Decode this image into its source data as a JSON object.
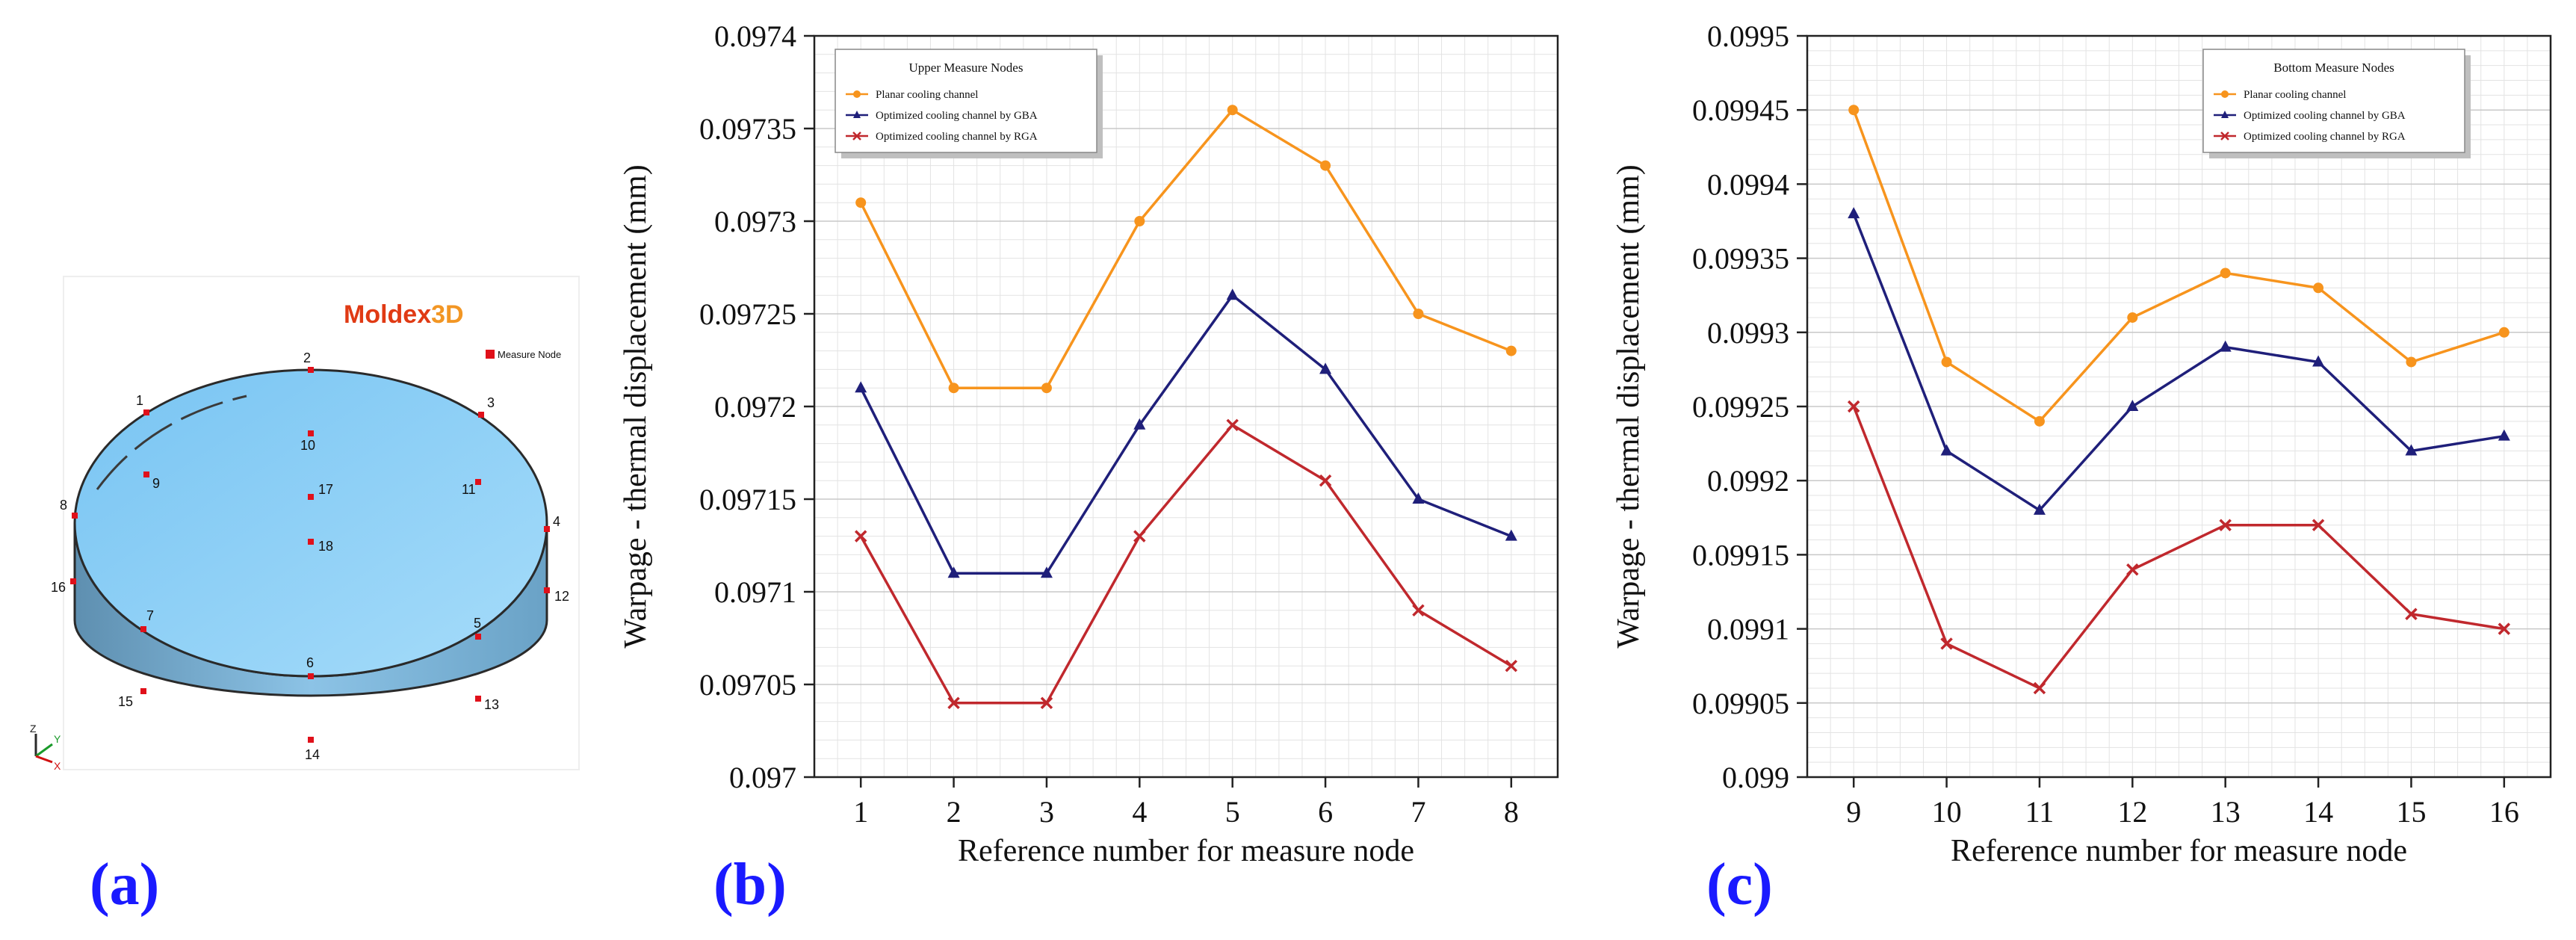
{
  "figure": {
    "panel_labels": [
      "(a)",
      "(b)",
      "(c)"
    ]
  },
  "model_view": {
    "brand": "Moldex3D",
    "brand_suffix": "3D",
    "legend": "Measure Node",
    "node_labels": [
      "1",
      "2",
      "3",
      "4",
      "5",
      "6",
      "7",
      "8",
      "9",
      "10",
      "11",
      "12",
      "13",
      "14",
      "15",
      "16",
      "17",
      "18"
    ],
    "axis_labels": [
      "Z",
      "Y",
      "X"
    ],
    "colors": {
      "top": "#8fd0f6",
      "wall": "#7ab6d8",
      "node": "#e0101a",
      "brand_red": "#e03a14",
      "brand_orange": "#f29624"
    }
  },
  "chart_data": [
    {
      "type": "line",
      "title": "",
      "legend_title": "Upper Measure Nodes",
      "xlabel": "Reference number for measure node",
      "ylabel": "Warpage - thermal displacement (mm)",
      "x": [
        1,
        2,
        3,
        4,
        5,
        6,
        7,
        8
      ],
      "xticks": [
        "1",
        "2",
        "3",
        "4",
        "5",
        "6",
        "7",
        "8"
      ],
      "ylim": [
        0.097,
        0.0974
      ],
      "yticks": [
        "0.097",
        "0.09705",
        "0.0971",
        "0.09715",
        "0.0972",
        "0.09725",
        "0.0973",
        "0.09735",
        "0.0974"
      ],
      "grid": true,
      "legend_position": "top-left",
      "series": [
        {
          "name": "Planar cooling channel",
          "color": "#f7941d",
          "marker": "circle",
          "values": [
            0.09731,
            0.09721,
            0.09721,
            0.0973,
            0.09736,
            0.09733,
            0.09725,
            0.09723
          ]
        },
        {
          "name": "Optimized cooling channel by GBA",
          "color": "#1f1f7a",
          "marker": "triangle",
          "values": [
            0.09721,
            0.09711,
            0.09711,
            0.09719,
            0.09726,
            0.09722,
            0.09715,
            0.09713
          ]
        },
        {
          "name": "Optimized cooling channel by RGA",
          "color": "#c0282d",
          "marker": "x",
          "values": [
            0.09713,
            0.09704,
            0.09704,
            0.09713,
            0.09719,
            0.09716,
            0.09709,
            0.09706
          ]
        }
      ]
    },
    {
      "type": "line",
      "title": "",
      "legend_title": "Bottom Measure Nodes",
      "xlabel": "Reference number for measure node",
      "ylabel": "Warpage - thermal displacement (mm)",
      "x": [
        9,
        10,
        11,
        12,
        13,
        14,
        15,
        16
      ],
      "xticks": [
        "9",
        "10",
        "11",
        "12",
        "13",
        "14",
        "15",
        "16"
      ],
      "ylim": [
        0.099,
        0.0995
      ],
      "yticks": [
        "0.099",
        "0.09905",
        "0.0991",
        "0.09915",
        "0.0992",
        "0.09925",
        "0.0993",
        "0.09935",
        "0.0994",
        "0.09945",
        "0.0995"
      ],
      "grid": true,
      "legend_position": "top-right",
      "series": [
        {
          "name": "Planar cooling channel",
          "color": "#f7941d",
          "marker": "circle",
          "values": [
            0.09945,
            0.09928,
            0.09924,
            0.09931,
            0.09934,
            0.09933,
            0.09928,
            0.0993
          ]
        },
        {
          "name": "Optimized cooling channel by GBA",
          "color": "#1f1f7a",
          "marker": "triangle",
          "values": [
            0.09938,
            0.09922,
            0.09918,
            0.09925,
            0.09929,
            0.09928,
            0.09922,
            0.09923
          ]
        },
        {
          "name": "Optimized cooling channel by RGA",
          "color": "#c0282d",
          "marker": "x",
          "values": [
            0.09925,
            0.09909,
            0.09906,
            0.09914,
            0.09917,
            0.09917,
            0.09911,
            0.0991
          ]
        }
      ]
    }
  ]
}
